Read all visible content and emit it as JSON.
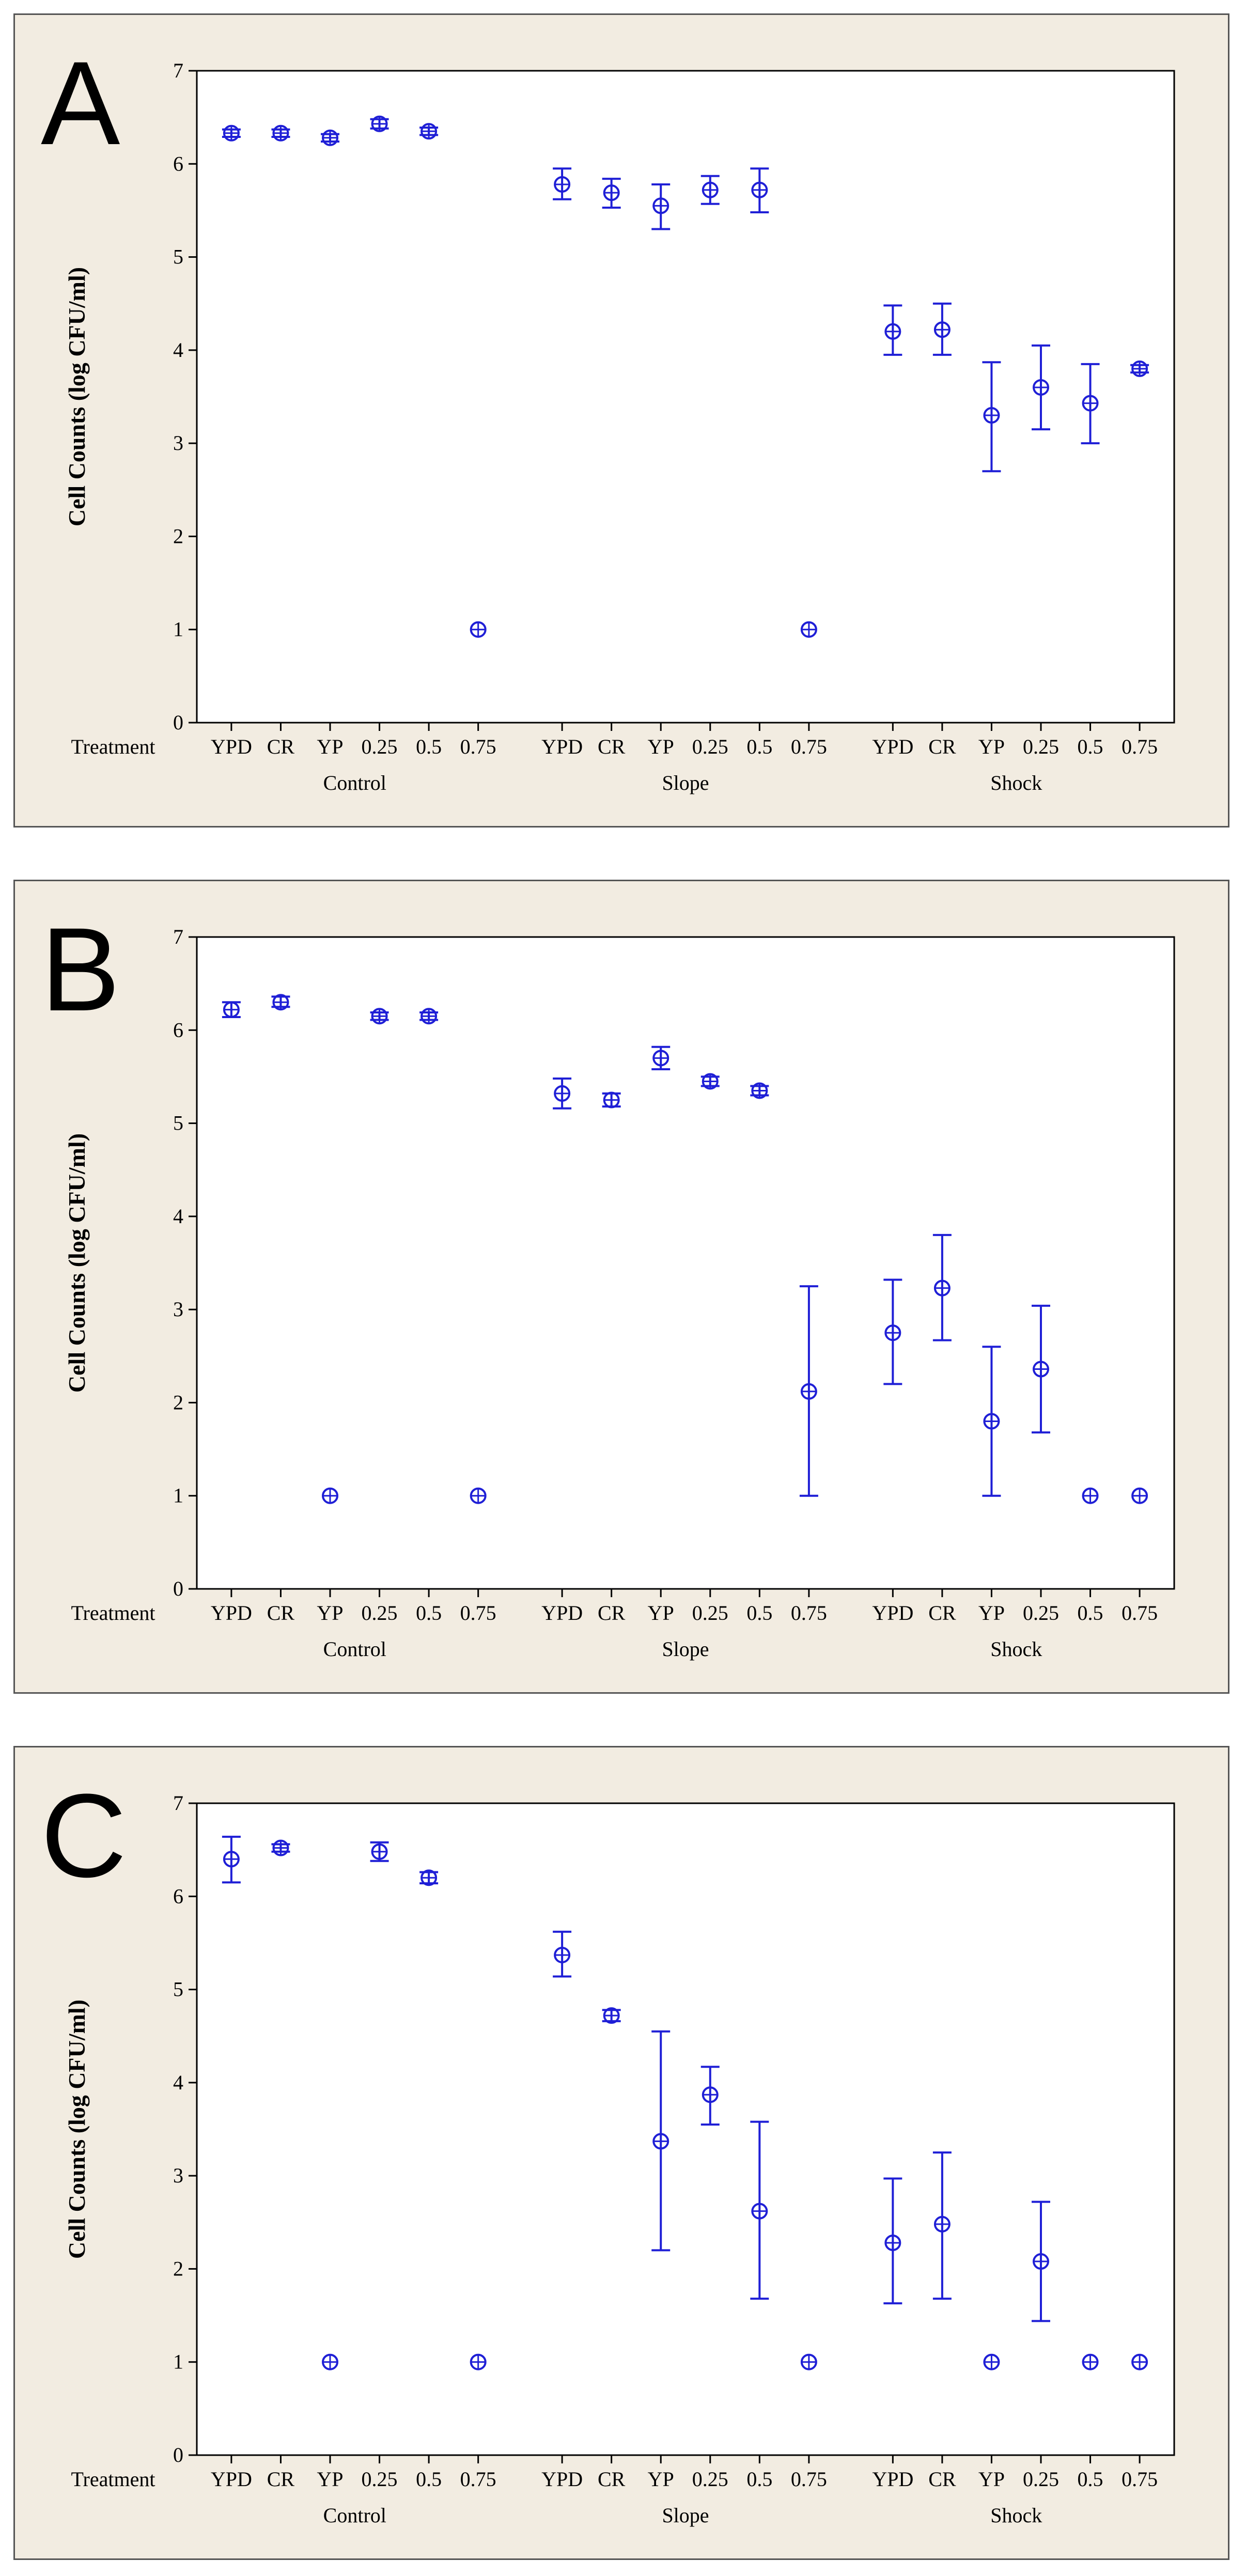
{
  "chart_data": [
    {
      "type": "scatter",
      "panel_label": "A",
      "ylabel": "Cell Counts (log CFU/ml)",
      "xlabel": "Treatment",
      "ylim": [
        0,
        7
      ],
      "yticks": [
        "0",
        "1",
        "2",
        "3",
        "4",
        "5",
        "6",
        "7"
      ],
      "groups": [
        {
          "name": "Control",
          "categories": [
            "YPD",
            "CR",
            "YP",
            "0.25",
            "0.5",
            "0.75"
          ],
          "values": [
            6.33,
            6.33,
            6.28,
            6.43,
            6.35,
            1.0
          ],
          "err_low": [
            6.29,
            6.29,
            6.24,
            6.38,
            6.31,
            null
          ],
          "err_high": [
            6.37,
            6.37,
            6.32,
            6.48,
            6.39,
            null
          ]
        },
        {
          "name": "Slope",
          "categories": [
            "YPD",
            "CR",
            "YP",
            "0.25",
            "0.5",
            "0.75"
          ],
          "values": [
            5.78,
            5.69,
            5.55,
            5.72,
            5.72,
            1.0
          ],
          "err_low": [
            5.62,
            5.53,
            5.3,
            5.57,
            5.48,
            null
          ],
          "err_high": [
            5.95,
            5.84,
            5.78,
            5.87,
            5.95,
            null
          ]
        },
        {
          "name": "Shock",
          "categories": [
            "YPD",
            "CR",
            "YP",
            "0.25",
            "0.5",
            "0.75"
          ],
          "values": [
            4.2,
            4.22,
            3.3,
            3.6,
            3.43,
            3.8
          ],
          "err_low": [
            3.95,
            3.95,
            2.7,
            3.15,
            3.0,
            3.76
          ],
          "err_high": [
            4.48,
            4.5,
            3.87,
            4.05,
            3.85,
            3.84
          ]
        }
      ]
    },
    {
      "type": "scatter",
      "panel_label": "B",
      "ylabel": "Cell Counts (log CFU/ml)",
      "xlabel": "Treatment",
      "ylim": [
        0,
        7
      ],
      "yticks": [
        "0",
        "1",
        "2",
        "3",
        "4",
        "5",
        "6",
        "7"
      ],
      "groups": [
        {
          "name": "Control",
          "categories": [
            "YPD",
            "CR",
            "YP",
            "0.25",
            "0.5",
            "0.75"
          ],
          "values": [
            6.22,
            6.3,
            1.0,
            6.15,
            6.15,
            1.0
          ],
          "err_low": [
            6.14,
            6.25,
            null,
            6.11,
            6.11,
            null
          ],
          "err_high": [
            6.3,
            6.36,
            null,
            6.19,
            6.19,
            null
          ]
        },
        {
          "name": "Slope",
          "categories": [
            "YPD",
            "CR",
            "YP",
            "0.25",
            "0.5",
            "0.75"
          ],
          "values": [
            5.32,
            5.25,
            5.7,
            5.45,
            5.35,
            2.12
          ],
          "err_low": [
            5.16,
            5.18,
            5.58,
            5.4,
            5.3,
            1.0
          ],
          "err_high": [
            5.48,
            5.32,
            5.82,
            5.5,
            5.4,
            3.25
          ]
        },
        {
          "name": "Shock",
          "categories": [
            "YPD",
            "CR",
            "YP",
            "0.25",
            "0.5",
            "0.75"
          ],
          "values": [
            2.75,
            3.23,
            1.8,
            2.36,
            1.0,
            1.0
          ],
          "err_low": [
            2.2,
            2.67,
            1.0,
            1.68,
            null,
            null
          ],
          "err_high": [
            3.32,
            3.8,
            2.6,
            3.04,
            null,
            null
          ]
        }
      ]
    },
    {
      "type": "scatter",
      "panel_label": "C",
      "ylabel": "Cell Counts (log CFU/ml)",
      "xlabel": "Treatment",
      "ylim": [
        0,
        7
      ],
      "yticks": [
        "0",
        "1",
        "2",
        "3",
        "4",
        "5",
        "6",
        "7"
      ],
      "groups": [
        {
          "name": "Control",
          "categories": [
            "YPD",
            "CR",
            "YP",
            "0.25",
            "0.5",
            "0.75"
          ],
          "values": [
            6.4,
            6.52,
            1.0,
            6.48,
            6.2,
            1.0
          ],
          "err_low": [
            6.15,
            6.48,
            null,
            6.38,
            6.14,
            null
          ],
          "err_high": [
            6.64,
            6.56,
            null,
            6.58,
            6.26,
            null
          ]
        },
        {
          "name": "Slope",
          "categories": [
            "YPD",
            "CR",
            "YP",
            "0.25",
            "0.5",
            "0.75"
          ],
          "values": [
            5.37,
            4.72,
            3.37,
            3.87,
            2.62,
            1.0
          ],
          "err_low": [
            5.14,
            4.66,
            2.2,
            3.55,
            1.68,
            null
          ],
          "err_high": [
            5.62,
            4.78,
            4.55,
            4.17,
            3.58,
            null
          ]
        },
        {
          "name": "Shock",
          "categories": [
            "YPD",
            "CR",
            "YP",
            "0.25",
            "0.5",
            "0.75"
          ],
          "values": [
            2.28,
            2.48,
            1.0,
            2.08,
            1.0,
            1.0
          ],
          "err_low": [
            1.63,
            1.68,
            null,
            1.44,
            null,
            null
          ],
          "err_high": [
            2.97,
            3.25,
            null,
            2.72,
            null,
            null
          ]
        }
      ]
    }
  ],
  "colors": {
    "marker": "#1f1fd6",
    "panel_bg": "#f2ece1",
    "plot_bg": "#ffffff"
  }
}
